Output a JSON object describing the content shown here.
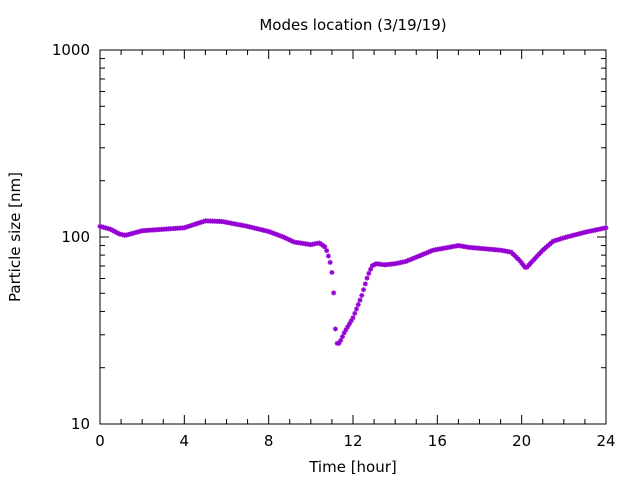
{
  "chart_data": {
    "type": "scatter",
    "title": "Modes location (3/19/19)",
    "xlabel": "Time [hour]",
    "ylabel": "Particle size [nm]",
    "xlim": [
      0,
      24
    ],
    "ylim": [
      10,
      1000
    ],
    "yscale": "log",
    "x_ticks": [
      0,
      4,
      8,
      12,
      16,
      20,
      24
    ],
    "y_ticks": [
      10,
      100,
      1000
    ],
    "grid": false,
    "legend": "none",
    "marker_color": "#9400d3",
    "keypoints": {
      "x": [
        0,
        0.5,
        0.9,
        1.2,
        2.0,
        3.0,
        4.0,
        4.5,
        5.0,
        5.8,
        7.0,
        8.0,
        8.7,
        9.2,
        10.0,
        10.4,
        10.7,
        10.9,
        11.05,
        11.2,
        11.35,
        11.6,
        12.0,
        12.4,
        12.7,
        12.9,
        13.1,
        13.5,
        14.0,
        14.5,
        15.0,
        15.8,
        17.0,
        17.5,
        18.0,
        19.0,
        19.5,
        19.9,
        20.2,
        20.5,
        21.0,
        21.5,
        22.0,
        23.0,
        24.0
      ],
      "y": [
        114,
        110,
        104,
        102,
        108,
        110,
        112,
        117,
        122,
        121,
        114,
        107,
        100,
        94,
        91,
        93,
        88,
        75,
        60,
        27,
        27,
        31,
        37,
        48,
        62,
        70,
        72,
        71,
        72,
        74,
        78,
        85,
        90,
        88,
        87,
        85,
        83,
        75,
        68,
        74,
        85,
        95,
        99,
        106,
        112
      ]
    }
  }
}
